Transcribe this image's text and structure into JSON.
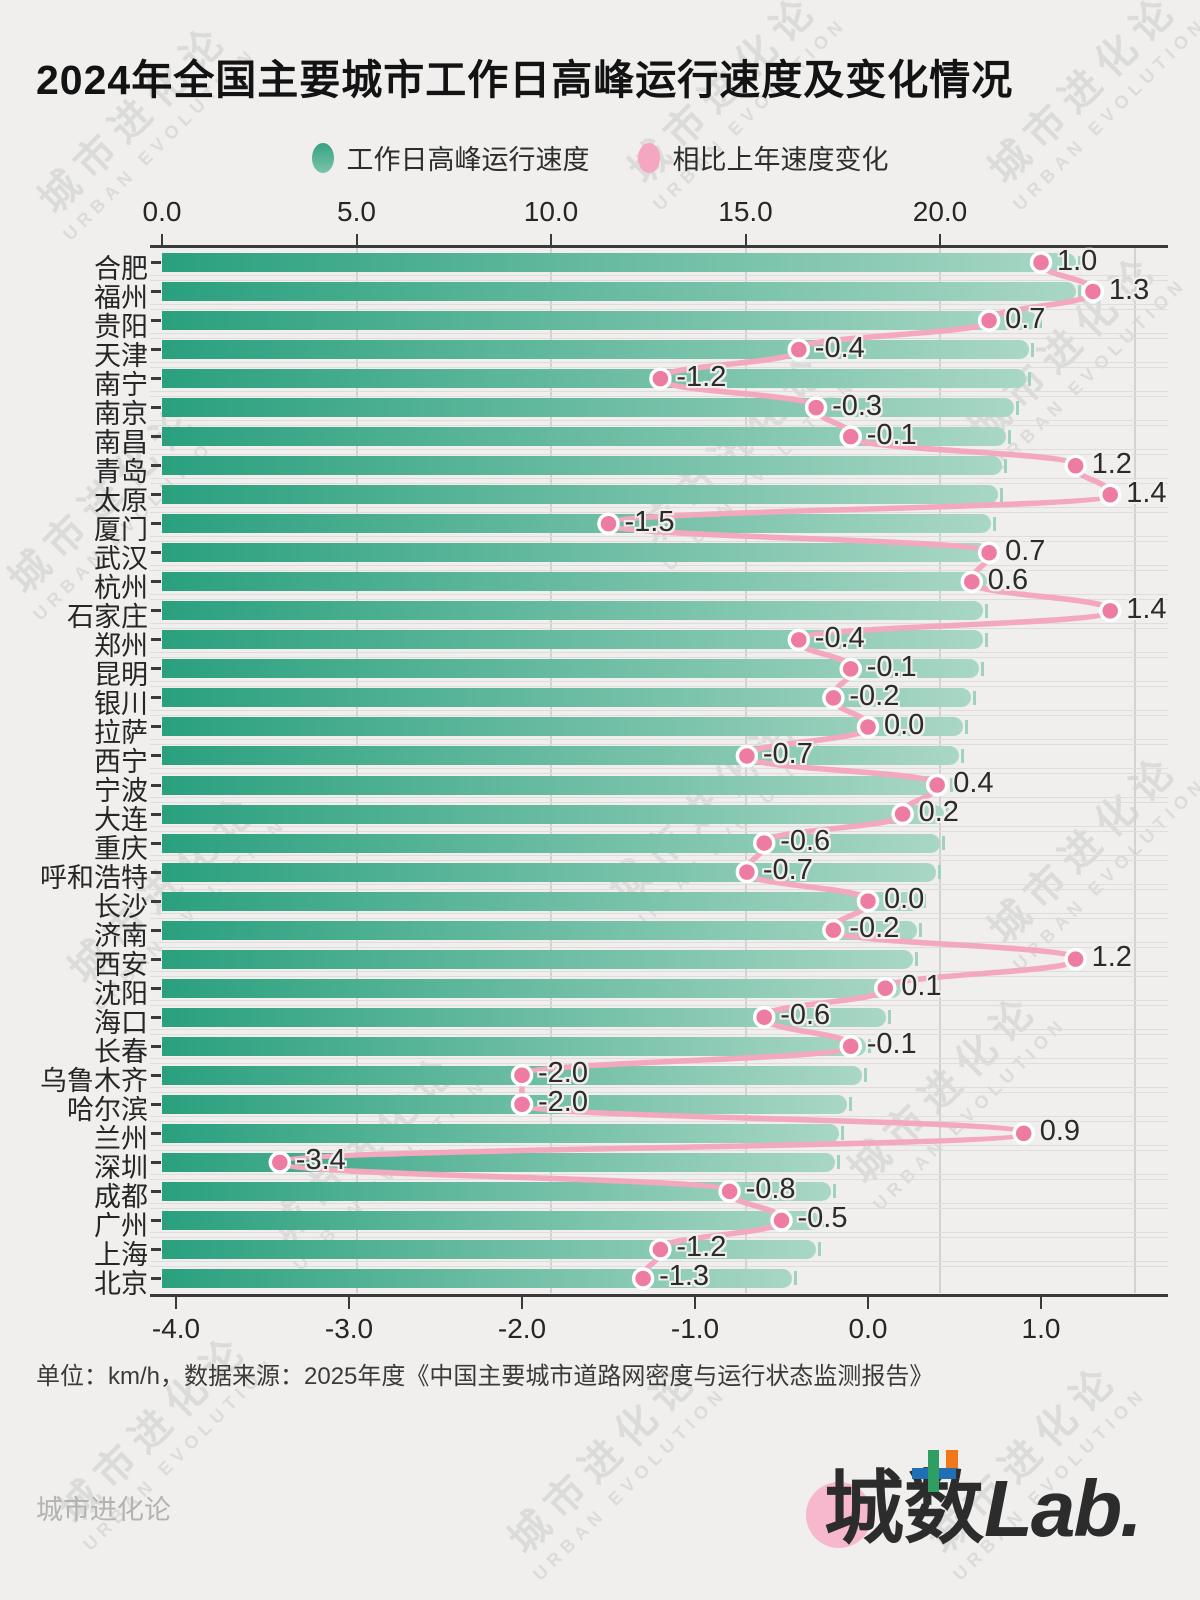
{
  "title": "2024年全国主要城市工作日高峰运行速度及变化情况",
  "legend": [
    {
      "label": "工作日高峰运行速度"
    },
    {
      "label": "相比上年速度变化"
    }
  ],
  "footer": {
    "note": "单位：km/h，数据来源：2025年度《中国主要城市道路网密度与运行状态监测报告》",
    "brand": "城市进化论"
  },
  "logo": {
    "cheng": "城",
    "shu": "数",
    "lab": "Lab."
  },
  "watermark": {
    "line1": "城市进化论",
    "line2": "URBAN EVOLUTION"
  },
  "chart_data": {
    "type": "bar",
    "orientation": "horizontal",
    "title": "2024年全国主要城市工作日高峰运行速度及变化情况",
    "unit": "km/h",
    "categories": [
      "合肥",
      "福州",
      "贵阳",
      "天津",
      "南宁",
      "南京",
      "南昌",
      "青岛",
      "太原",
      "厦门",
      "武汉",
      "杭州",
      "石家庄",
      "郑州",
      "昆明",
      "银川",
      "拉萨",
      "西宁",
      "宁波",
      "大连",
      "重庆",
      "呼和浩特",
      "长沙",
      "济南",
      "西安",
      "沈阳",
      "海口",
      "长春",
      "乌鲁木齐",
      "哈尔滨",
      "兰州",
      "深圳",
      "成都",
      "广州",
      "上海",
      "北京"
    ],
    "series": [
      {
        "name": "工作日高峰运行速度",
        "type": "bar",
        "axis": "top",
        "values": [
          23.5,
          23.5,
          22.5,
          22.3,
          22.2,
          21.9,
          21.7,
          21.6,
          21.5,
          21.3,
          21.2,
          21.2,
          21.1,
          21.1,
          21.0,
          20.8,
          20.6,
          20.5,
          20.2,
          20.1,
          20.0,
          19.9,
          19.5,
          19.4,
          19.3,
          19.0,
          18.6,
          18.1,
          18.0,
          17.6,
          17.4,
          17.3,
          17.2,
          16.9,
          16.8,
          16.2
        ]
      },
      {
        "name": "相比上年速度变化",
        "type": "line",
        "axis": "bottom",
        "values": [
          1.0,
          1.3,
          0.7,
          -0.4,
          -1.2,
          -0.3,
          -0.1,
          1.2,
          1.4,
          -1.5,
          0.7,
          0.6,
          1.4,
          -0.4,
          -0.1,
          -0.2,
          0.0,
          -0.7,
          0.4,
          0.2,
          -0.6,
          -0.7,
          0.0,
          -0.2,
          1.2,
          0.1,
          -0.6,
          -0.1,
          -2.0,
          -2.0,
          0.9,
          -3.4,
          -0.8,
          -0.5,
          -1.2,
          -1.3
        ]
      }
    ],
    "top_axis": {
      "tick_values": [
        0,
        5,
        10,
        15,
        20
      ],
      "tick_labels": [
        "0.0",
        "5.0",
        "10.0",
        "15.0",
        "20.0"
      ],
      "grid_values": [
        5,
        10,
        15,
        20,
        25
      ],
      "max": 25.8
    },
    "bottom_axis": {
      "tick_values": [
        -4,
        -3,
        -2,
        -1,
        0,
        1
      ],
      "tick_labels": [
        "-4.0",
        "-3.0",
        "-2.0",
        "-1.0",
        "0.0",
        "1.0"
      ],
      "min": -4.1,
      "max": 1.7
    },
    "grid": true,
    "legend_position": "top",
    "colors": {
      "bar_gradient_start": "#29a07e",
      "bar_gradient_end": "#a9d7c5",
      "bar_whisker": "#9fd3c0",
      "line": "#f3a8bd",
      "dot": "#ee7ba2",
      "dot_stroke": "#ffffff",
      "grid": "#d2d2d0",
      "axis": "#3a3a3a",
      "background": "#f0efed"
    }
  }
}
